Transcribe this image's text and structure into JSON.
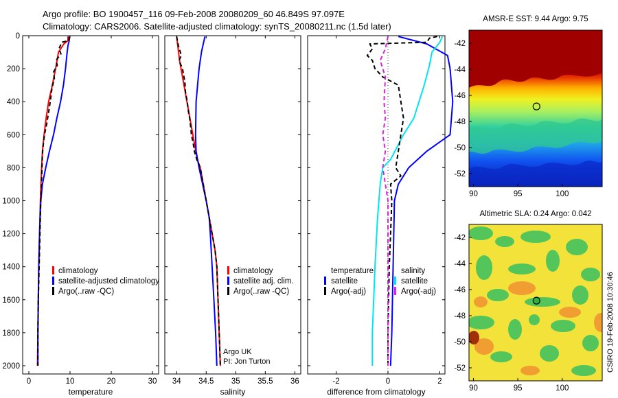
{
  "titles": {
    "line1": "Argo profile: BO 1900457_116 09-Feb-2008 20080209_60 46.849S 97.097E",
    "line2": "Climatology: CARS2006. Satellite-adjusted climatology: synTS_20080211.nc (1.5d later)"
  },
  "credit": {
    "line1": "Argo UK",
    "line2": "PI: Jon Turton"
  },
  "timestamp": "CSIRO 19-Feb-2008 10:30:46",
  "colors": {
    "climatology": "#ff0000",
    "satellite": "#0000ff",
    "argo": "#000000",
    "satellite_diff": "#00e5ee",
    "argo_salinity_diff": "#e020e0"
  },
  "chart_data": [
    {
      "id": "temperature",
      "type": "line",
      "xlabel": "temperature",
      "ylabel": "",
      "xlim": [
        -1.5,
        31.5
      ],
      "ylim": [
        2050,
        0
      ],
      "y_reversed": true,
      "xticks": [
        0,
        10,
        20,
        30
      ],
      "yticks": [
        0,
        200,
        400,
        600,
        800,
        1000,
        1200,
        1400,
        1600,
        1800,
        2000
      ],
      "legend": {
        "position": "bottom-right",
        "entries": [
          {
            "label": "climatology",
            "color": "#ff0000"
          },
          {
            "label": "satellite-adjusted climatology",
            "color": "#0000ff"
          },
          {
            "label": "Argo(..raw -QC)",
            "color": "#000000"
          }
        ]
      },
      "series": [
        {
          "name": "climatology",
          "color": "#ff0000",
          "dash": "",
          "points": [
            [
              9.5,
              5
            ],
            [
              9.5,
              30
            ],
            [
              8.5,
              50
            ],
            [
              7.2,
              100
            ],
            [
              6.5,
              200
            ],
            [
              5.7,
              300
            ],
            [
              4.8,
              400
            ],
            [
              4.2,
              500
            ],
            [
              3.7,
              600
            ],
            [
              3.3,
              700
            ],
            [
              3.1,
              800
            ],
            [
              2.8,
              1000
            ],
            [
              2.6,
              1200
            ],
            [
              2.4,
              1400
            ],
            [
              2.3,
              1600
            ],
            [
              2.2,
              1800
            ],
            [
              2.1,
              2000
            ]
          ]
        },
        {
          "name": "satellite-adjusted climatology",
          "color": "#0000ff",
          "dash": "",
          "points": [
            [
              9.9,
              5
            ],
            [
              9.8,
              30
            ],
            [
              9.5,
              60
            ],
            [
              9.3,
              100
            ],
            [
              8.9,
              200
            ],
            [
              8.4,
              300
            ],
            [
              7.7,
              400
            ],
            [
              6.8,
              500
            ],
            [
              6.0,
              600
            ],
            [
              5.0,
              700
            ],
            [
              4.1,
              800
            ],
            [
              3.3,
              900
            ],
            [
              2.9,
              1000
            ],
            [
              2.6,
              1200
            ],
            [
              2.4,
              1400
            ],
            [
              2.3,
              1600
            ],
            [
              2.2,
              1800
            ],
            [
              2.2,
              2000
            ]
          ]
        },
        {
          "name": "Argo(..raw -QC)",
          "color": "#000000",
          "dash": "6,4",
          "points": [
            [
              9.8,
              5
            ],
            [
              9.7,
              30
            ],
            [
              8.0,
              40
            ],
            [
              7.3,
              80
            ],
            [
              7.8,
              110
            ],
            [
              6.6,
              150
            ],
            [
              6.9,
              180
            ],
            [
              6.0,
              220
            ],
            [
              6.2,
              260
            ],
            [
              5.6,
              320
            ],
            [
              5.2,
              400
            ],
            [
              4.7,
              480
            ],
            [
              4.3,
              540
            ],
            [
              3.8,
              600
            ],
            [
              3.5,
              660
            ],
            [
              3.3,
              720
            ],
            [
              3.2,
              800
            ],
            [
              2.9,
              1000
            ],
            [
              2.7,
              1200
            ],
            [
              2.5,
              1400
            ],
            [
              2.3,
              1600
            ],
            [
              2.2,
              1800
            ],
            [
              2.2,
              2000
            ]
          ]
        }
      ]
    },
    {
      "id": "salinity",
      "type": "line",
      "xlabel": "salinity",
      "ylabel": "",
      "xlim": [
        33.8,
        36.1
      ],
      "ylim": [
        2050,
        0
      ],
      "y_reversed": true,
      "xticks": [
        34,
        34.5,
        35,
        35.5,
        36
      ],
      "legend": {
        "position": "bottom-right",
        "entries": [
          {
            "label": "climatology",
            "color": "#ff0000"
          },
          {
            "label": "satellite adj. clim.",
            "color": "#0000ff"
          },
          {
            "label": "Argo(..raw -QC)",
            "color": "#000000"
          }
        ]
      },
      "series": [
        {
          "name": "climatology",
          "color": "#ff0000",
          "dash": "",
          "points": [
            [
              34.0,
              5
            ],
            [
              34.02,
              60
            ],
            [
              34.05,
              150
            ],
            [
              34.1,
              250
            ],
            [
              34.15,
              350
            ],
            [
              34.2,
              450
            ],
            [
              34.25,
              550
            ],
            [
              34.3,
              650
            ],
            [
              34.35,
              750
            ],
            [
              34.4,
              800
            ],
            [
              34.45,
              900
            ],
            [
              34.5,
              1000
            ],
            [
              34.55,
              1100
            ],
            [
              34.6,
              1200
            ],
            [
              34.65,
              1300
            ],
            [
              34.68,
              1400
            ],
            [
              34.7,
              1600
            ],
            [
              34.72,
              1800
            ],
            [
              34.74,
              2000
            ]
          ]
        },
        {
          "name": "satellite adj. clim.",
          "color": "#0000ff",
          "dash": "",
          "points": [
            [
              34.48,
              5
            ],
            [
              34.45,
              50
            ],
            [
              34.42,
              100
            ],
            [
              34.38,
              200
            ],
            [
              34.33,
              400
            ],
            [
              34.32,
              600
            ],
            [
              34.33,
              700
            ],
            [
              34.38,
              800
            ],
            [
              34.44,
              900
            ],
            [
              34.5,
              1000
            ],
            [
              34.55,
              1100
            ],
            [
              34.57,
              1200
            ],
            [
              34.6,
              1400
            ],
            [
              34.63,
              1600
            ],
            [
              34.66,
              1800
            ],
            [
              34.68,
              2000
            ]
          ]
        },
        {
          "name": "Argo(..raw -QC)",
          "color": "#000000",
          "dash": "6,4",
          "points": [
            [
              34.0,
              5
            ],
            [
              34.03,
              60
            ],
            [
              34.08,
              120
            ],
            [
              34.04,
              150
            ],
            [
              34.1,
              200
            ],
            [
              34.12,
              240
            ],
            [
              34.14,
              280
            ],
            [
              34.15,
              340
            ],
            [
              34.18,
              400
            ],
            [
              34.2,
              460
            ],
            [
              34.22,
              500
            ],
            [
              34.24,
              560
            ],
            [
              34.25,
              600
            ],
            [
              34.28,
              650
            ],
            [
              34.3,
              700
            ],
            [
              34.35,
              760
            ],
            [
              34.4,
              800
            ],
            [
              34.45,
              900
            ],
            [
              34.5,
              1000
            ],
            [
              34.55,
              1100
            ],
            [
              34.6,
              1200
            ],
            [
              34.65,
              1300
            ],
            [
              34.68,
              1400
            ],
            [
              34.7,
              1600
            ],
            [
              34.72,
              1800
            ],
            [
              34.74,
              2000
            ]
          ]
        }
      ]
    },
    {
      "id": "difference",
      "type": "line",
      "xlabel": "difference from climatology",
      "ylabel": "",
      "xlim": [
        -3.1,
        2.2
      ],
      "ylim": [
        2050,
        0
      ],
      "y_reversed": true,
      "xticks": [
        -2,
        0,
        2
      ],
      "legend": {
        "position": "bottom",
        "headers": [
          "temperature",
          "salinity"
        ],
        "entries": [
          {
            "label": "satellite",
            "color": "#0000ff",
            "column": "temperature"
          },
          {
            "label": "Argo(-adj)",
            "color": "#000000",
            "column": "temperature"
          },
          {
            "label": "satellite",
            "color": "#00e5ee",
            "column": "salinity"
          },
          {
            "label": "Argo(-adj)",
            "color": "#e020e0",
            "column": "salinity"
          }
        ]
      },
      "series": [
        {
          "name": "satellite (temperature)",
          "color": "#0000ff",
          "dash": "",
          "points": [
            [
              0.4,
              5
            ],
            [
              1.5,
              50
            ],
            [
              2.3,
              120
            ],
            [
              2.4,
              200
            ],
            [
              2.5,
              400
            ],
            [
              2.4,
              600
            ],
            [
              1.5,
              700
            ],
            [
              0.8,
              800
            ],
            [
              0.4,
              900
            ],
            [
              0.25,
              1000
            ],
            [
              0.2,
              1400
            ],
            [
              0.15,
              1800
            ],
            [
              0.1,
              2000
            ]
          ]
        },
        {
          "name": "satellite (salinity)",
          "color": "#00e5ee",
          "dash": "",
          "points": [
            [
              2.1,
              5
            ],
            [
              2.0,
              40
            ],
            [
              1.7,
              100
            ],
            [
              1.6,
              180
            ],
            [
              1.4,
              300
            ],
            [
              1.0,
              500
            ],
            [
              0.6,
              600
            ],
            [
              0.1,
              750
            ],
            [
              -0.2,
              800
            ],
            [
              -0.3,
              900
            ],
            [
              -0.4,
              1100
            ],
            [
              -0.5,
              1400
            ],
            [
              -0.55,
              1600
            ],
            [
              -0.6,
              1800
            ],
            [
              -0.6,
              2000
            ]
          ]
        },
        {
          "name": "Argo(-adj) (temperature)",
          "color": "#000000",
          "dash": "6,4",
          "points": [
            [
              1.9,
              5
            ],
            [
              1.6,
              15
            ],
            [
              1.5,
              40
            ],
            [
              -0.7,
              50
            ],
            [
              -0.6,
              80
            ],
            [
              -0.8,
              120
            ],
            [
              -0.6,
              150
            ],
            [
              -0.5,
              200
            ],
            [
              -0.2,
              250
            ],
            [
              0.4,
              300
            ],
            [
              0.5,
              400
            ],
            [
              0.6,
              500
            ],
            [
              0.5,
              600
            ],
            [
              0.4,
              700
            ],
            [
              0.3,
              800
            ],
            [
              0.5,
              850
            ],
            [
              0.1,
              900
            ],
            [
              0.15,
              1000
            ],
            [
              0.1,
              1200
            ],
            [
              0.05,
              1400
            ],
            [
              0.0,
              1800
            ],
            [
              0.0,
              2000
            ]
          ]
        },
        {
          "name": "Argo(-adj) (salinity)",
          "color": "#e020e0",
          "dash": "6,4",
          "points": [
            [
              0.0,
              5
            ],
            [
              -0.1,
              80
            ],
            [
              -0.3,
              150
            ],
            [
              -0.1,
              250
            ],
            [
              -0.15,
              400
            ],
            [
              -0.1,
              500
            ],
            [
              -0.2,
              600
            ],
            [
              -0.1,
              700
            ],
            [
              -0.2,
              800
            ],
            [
              -0.1,
              900
            ],
            [
              0.0,
              1000
            ],
            [
              0.0,
              2000
            ]
          ]
        }
      ]
    },
    {
      "id": "sst_map",
      "type": "heatmap",
      "title": "AMSR-E SST: 9.44  Argo: 9.75",
      "xlim": [
        89.5,
        104.5
      ],
      "ylim": [
        -53,
        -41
      ],
      "xticks": [
        90,
        95,
        100
      ],
      "yticks": [
        -42,
        -44,
        -46,
        -48,
        -50,
        -52
      ],
      "marker": {
        "lon": 97.1,
        "lat": -46.85
      }
    },
    {
      "id": "sla_map",
      "type": "heatmap",
      "title": "Altimetric SLA: 0.24  Argo: 0.042",
      "xlim": [
        89.5,
        104.5
      ],
      "ylim": [
        -53,
        -41
      ],
      "xticks": [
        90,
        95,
        100
      ],
      "yticks": [
        -42,
        -44,
        -46,
        -48,
        -50,
        -52
      ],
      "marker": {
        "lon": 97.1,
        "lat": -46.85
      }
    }
  ]
}
